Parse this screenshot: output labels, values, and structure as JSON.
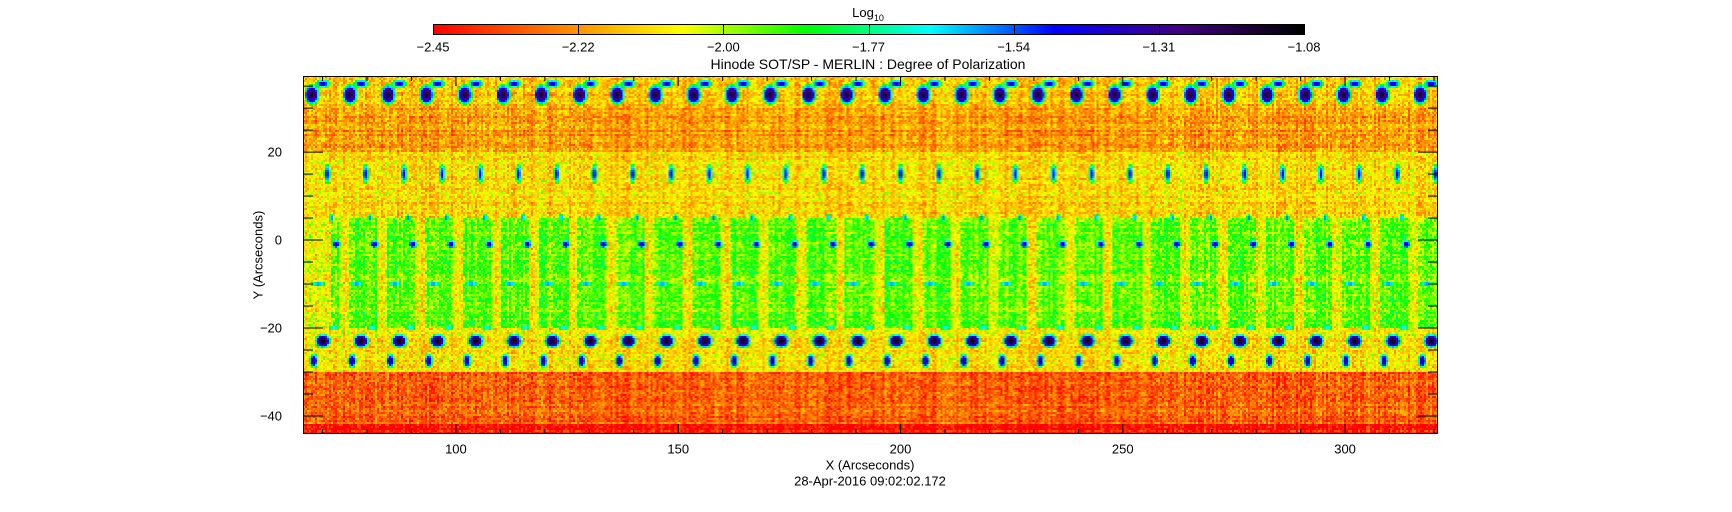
{
  "chart_data": {
    "type": "heatmap",
    "title": "Hinode SOT/SP - MERLIN : Degree of Polarization",
    "xlabel": "X (Arcseconds)",
    "ylabel": "Y (Arcseconds)",
    "footer": "28-Apr-2016 09:02:02.172",
    "xlim": [
      65.6,
      320.9
    ],
    "ylim": [
      -44.1,
      37.3
    ],
    "xticks": [
      100,
      150,
      200,
      250,
      300
    ],
    "xtick_labels": [
      "100",
      "150",
      "200",
      "250",
      "300"
    ],
    "yticks": [
      -40,
      -20,
      0,
      20
    ],
    "ytick_labels": [
      "−40",
      "−20",
      "0",
      "20"
    ],
    "colorbar": {
      "label_base": "Log",
      "label_sub": "10",
      "range": [
        -2.45,
        -1.08
      ],
      "scale": "log10",
      "tick_labels": [
        "−2.45",
        "−2.22",
        "−2.00",
        "−1.77",
        "−1.54",
        "−1.31",
        "−1.08"
      ],
      "colormap": [
        "#ff0000",
        "#ff8000",
        "#ffff00",
        "#00ff00",
        "#00ffff",
        "#0000ff",
        "#400080",
        "#000000"
      ],
      "position": "top"
    },
    "grid": false
  }
}
